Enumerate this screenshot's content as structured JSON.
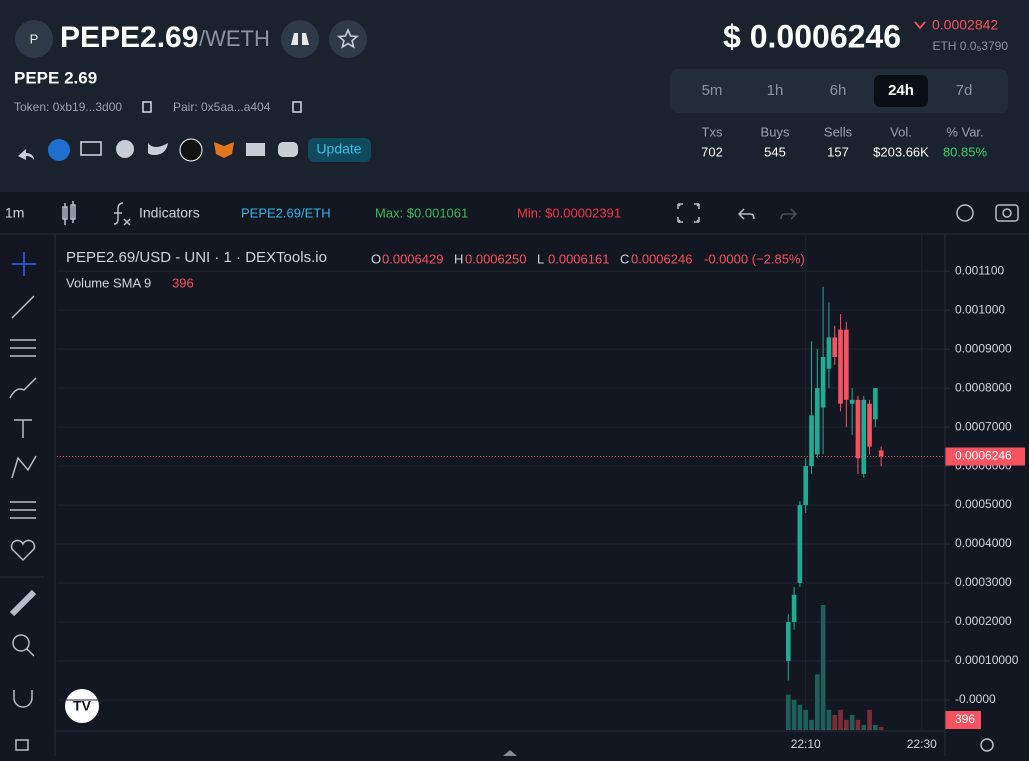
{
  "header": {
    "avatar": "P",
    "symbol": "PEPE2.69",
    "quote": "/WETH",
    "name": "PEPE 2.69",
    "token": "Token: 0xb19...3d00",
    "pair": "Pair: 0x5aa...a404",
    "update": "Update",
    "price": "$ 0.0006246",
    "change": "0.0002842",
    "eth_price": "ETH 0.0₅3790",
    "timeframes": [
      "5m",
      "1h",
      "6h",
      "24h",
      "7d"
    ],
    "active_timeframe": 3,
    "stat_labels": [
      "Txs",
      "Buys",
      "Sells",
      "Vol.",
      "% Var."
    ],
    "stat_values": [
      "702",
      "545",
      "157",
      "$203.66K",
      "80.85%"
    ]
  },
  "toolbar": {
    "interval": "1m",
    "indicators": "Indicators",
    "pair": "PEPE2.69/ETH",
    "max": "Max: $0.001061",
    "min": "Min: $0.00002391"
  },
  "legend": {
    "title": "PEPE2.69/USD - UNI · 1 · DEXTools.io",
    "ohlc_letters": [
      "O",
      "H",
      "L",
      "C"
    ],
    "ohlc_values": [
      "0.0006429",
      "0.0006250",
      "0.0006161",
      "0.0006246"
    ],
    "change": "-0.0000 (−2.85%)",
    "volume_sma": "Volume SMA 9",
    "volume_sma_value": 396
  },
  "chart_data": {
    "type": "candlestick",
    "x": [
      "22:07",
      "22:08",
      "22:09",
      "22:10",
      "22:11",
      "22:12",
      "22:13",
      "22:14",
      "22:15",
      "22:16",
      "22:17",
      "22:18",
      "22:19",
      "22:20",
      "22:21",
      "22:22",
      "22:23"
    ],
    "open": [
      0.0001,
      0.0002,
      0.0003,
      0.0005,
      0.0006,
      0.00063,
      0.00075,
      0.00085,
      0.00093,
      0.00095,
      0.00095,
      0.00076,
      0.00077,
      0.00058,
      0.00076,
      0.00072,
      0.00064
    ],
    "high": [
      0.00022,
      0.00029,
      0.00051,
      0.00062,
      0.00092,
      0.0009,
      0.00106,
      0.00102,
      0.00096,
      0.00099,
      0.00097,
      0.0008,
      0.00078,
      0.00078,
      0.00077,
      0.0008,
      0.00065
    ],
    "low": [
      5e-05,
      0.00018,
      0.00029,
      0.00048,
      0.00058,
      0.00062,
      0.00063,
      0.0008,
      0.00086,
      0.00074,
      0.0007,
      0.00068,
      0.00058,
      0.00057,
      0.00063,
      0.0007,
      0.0006
    ],
    "close": [
      0.0002,
      0.00027,
      0.0005,
      0.0006,
      0.00073,
      0.0008,
      0.00088,
      0.00093,
      0.00088,
      0.00076,
      0.00077,
      0.00077,
      0.00062,
      0.00077,
      0.00065,
      0.0008,
      0.000625
    ],
    "volume": [
      1400,
      1200,
      1000,
      800,
      400,
      2200,
      4950,
      800,
      600,
      800,
      400,
      600,
      400,
      200,
      800,
      200,
      120
    ],
    "up_color": "#22ab94",
    "down_color": "#f7525f",
    "volume_up_color": "#1e5f58",
    "volume_down_color": "#7a2d36",
    "ylim": [
      -7.7e-05,
      0.00118
    ],
    "yticks": [
      {
        "value": 0.0011,
        "label": "0.001100"
      },
      {
        "value": 0.001,
        "label": "0.001000"
      },
      {
        "value": 0.0009,
        "label": "0.0009000"
      },
      {
        "value": 0.0008,
        "label": "0.0008000"
      },
      {
        "value": 0.0007,
        "label": "0.0007000"
      },
      {
        "value": 0.0006,
        "label": "0.0006000"
      },
      {
        "value": 0.0005,
        "label": "0.0005000"
      },
      {
        "value": 0.0004,
        "label": "0.0004000"
      },
      {
        "value": 0.0003,
        "label": "0.0003000"
      },
      {
        "value": 0.0002,
        "label": "0.0002000"
      },
      {
        "value": 0.0001,
        "label": "0.00010000"
      },
      {
        "value": 0,
        "label": "-0.0000"
      }
    ],
    "volume_ylim": [
      0,
      19400
    ],
    "xlim": [
      "20:01",
      "22:34"
    ],
    "xticks": [
      "22:10",
      "22:30"
    ],
    "last_price": 0.0006246,
    "grid": true
  }
}
